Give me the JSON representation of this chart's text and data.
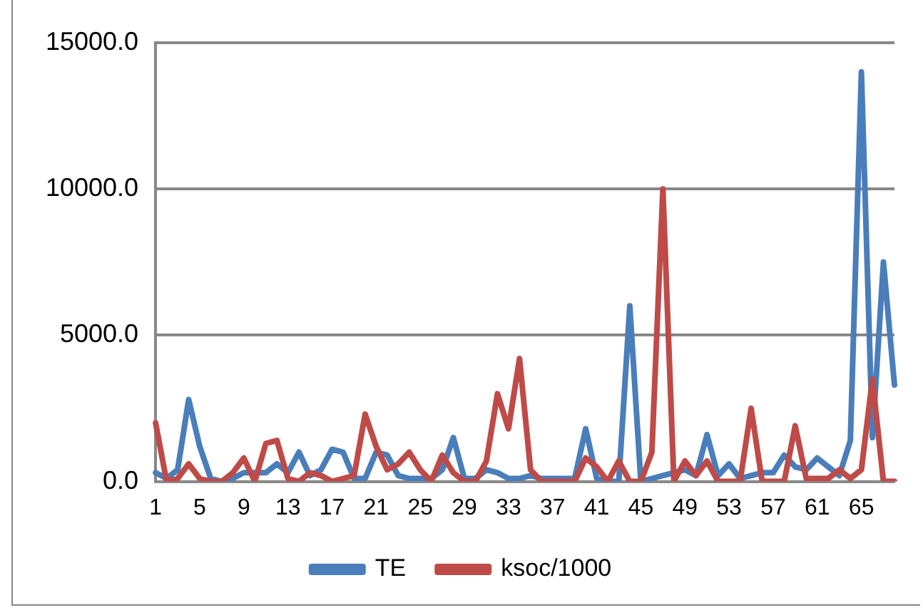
{
  "chart_data": {
    "type": "line",
    "categories": [
      "1",
      null,
      null,
      null,
      "5",
      null,
      null,
      null,
      "9",
      null,
      null,
      null,
      "13",
      null,
      null,
      null,
      "17",
      null,
      null,
      null,
      "21",
      null,
      null,
      null,
      "25",
      null,
      null,
      null,
      "29",
      null,
      null,
      null,
      "33",
      null,
      null,
      null,
      "37",
      null,
      null,
      null,
      "41",
      null,
      null,
      null,
      "45",
      null,
      null,
      null,
      "49",
      null,
      null,
      null,
      "53",
      null,
      null,
      null,
      "57",
      null,
      null,
      null,
      "61",
      null,
      null,
      null,
      "65",
      null,
      null,
      null
    ],
    "series": [
      {
        "name": "TE",
        "color": "#4a7ebb",
        "values": [
          300,
          100,
          400,
          2800,
          1200,
          100,
          0,
          100,
          300,
          300,
          300,
          600,
          300,
          1000,
          200,
          400,
          1100,
          1000,
          100,
          100,
          1000,
          900,
          200,
          100,
          100,
          100,
          400,
          1500,
          100,
          100,
          400,
          300,
          100,
          100,
          200,
          100,
          100,
          100,
          100,
          1800,
          100,
          0,
          0,
          6000,
          0,
          100,
          200,
          300,
          400,
          200,
          1600,
          200,
          600,
          100,
          200,
          300,
          300,
          900,
          500,
          400,
          800,
          500,
          200,
          1400,
          14000,
          1500,
          7500,
          3300
        ]
      },
      {
        "name": "ksoc/1000",
        "color": "#be4b48",
        "values": [
          2000,
          0,
          100,
          600,
          100,
          0,
          0,
          300,
          800,
          0,
          1300,
          1400,
          100,
          0,
          300,
          200,
          0,
          100,
          200,
          2300,
          1200,
          400,
          600,
          1000,
          400,
          0,
          900,
          300,
          0,
          0,
          700,
          3000,
          1800,
          4200,
          400,
          0,
          0,
          0,
          0,
          800,
          500,
          0,
          700,
          0,
          0,
          1000,
          10000,
          0,
          700,
          200,
          700,
          0,
          0,
          0,
          2500,
          0,
          0,
          0,
          1900,
          100,
          100,
          100,
          400,
          100,
          400,
          3500,
          0,
          0
        ]
      }
    ],
    "ylim": [
      0,
      15000
    ],
    "yticks": [
      {
        "value": 0,
        "label": "0.0"
      },
      {
        "value": 5000,
        "label": "5000.0"
      },
      {
        "value": 10000,
        "label": "10000.0"
      },
      {
        "value": 15000,
        "label": "15000.0"
      }
    ],
    "grid": "y",
    "legend": "bottom",
    "marker": "none",
    "line_style": "solid"
  }
}
